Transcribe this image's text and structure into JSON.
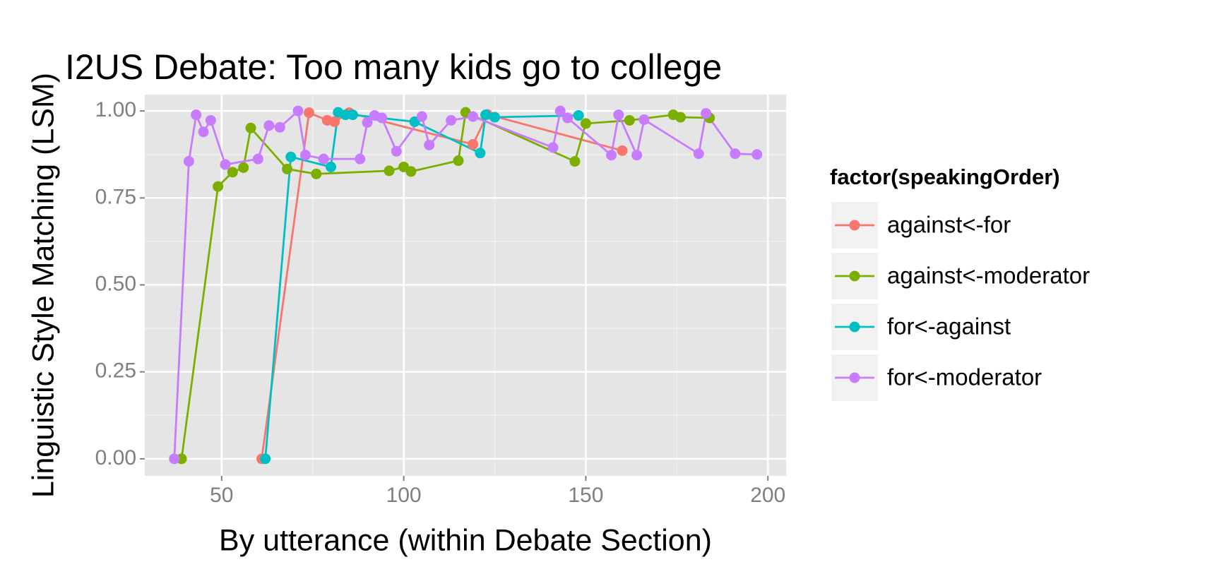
{
  "chart_data": {
    "type": "line",
    "title": "I2US Debate: Too many kids go to college",
    "x_label": "By utterance (within Debate Section)",
    "y_label": "Linguistic Style Matching (LSM)",
    "legend_title": "factor(speakingOrder)",
    "legend_position": "right",
    "grid": true,
    "xlim": [
      28.9,
      205
    ],
    "xticks": [
      50,
      100,
      150,
      200
    ],
    "ylim": [
      -0.049,
      1.047
    ],
    "yticks": [
      {
        "value": 0,
        "label": "0.00"
      },
      {
        "value": 0.25,
        "label": "0.25"
      },
      {
        "value": 0.5,
        "label": "0.50"
      },
      {
        "value": 0.75,
        "label": "0.75"
      },
      {
        "value": 1,
        "label": "1.00"
      }
    ],
    "series": [
      {
        "name": "against<-for",
        "color": "#F8766D",
        "x": [
          61,
          74,
          79,
          81,
          85,
          119,
          123,
          160
        ],
        "values": [
          0,
          0.995,
          0.973,
          0.969,
          0.995,
          0.904,
          0.99,
          0.886
        ]
      },
      {
        "name": "against<-moderator",
        "color": "#7CAE00",
        "x": [
          39,
          49,
          53,
          56,
          58,
          68,
          76,
          96,
          100,
          102,
          115,
          117,
          147,
          150,
          162,
          174,
          176,
          184
        ],
        "values": [
          0,
          0.783,
          0.824,
          0.837,
          0.951,
          0.833,
          0.819,
          0.828,
          0.839,
          0.826,
          0.857,
          0.996,
          0.855,
          0.964,
          0.973,
          0.989,
          0.982,
          0.98
        ]
      },
      {
        "name": "for<-against",
        "color": "#00BFC4",
        "x": [
          62,
          69,
          80,
          82,
          84,
          86,
          103,
          121,
          122.5,
          125,
          148
        ],
        "values": [
          0,
          0.868,
          0.839,
          0.996,
          0.989,
          0.989,
          0.969,
          0.879,
          0.989,
          0.982,
          0.987
        ]
      },
      {
        "name": "for<-moderator",
        "color": "#C77CFF",
        "x": [
          37,
          41,
          43,
          45,
          47,
          51,
          60,
          63,
          66,
          71,
          73,
          78,
          88,
          90,
          92,
          94,
          98,
          105,
          107,
          113,
          119,
          141,
          143,
          145,
          157,
          159,
          164,
          166,
          181,
          183,
          191,
          197
        ],
        "values": [
          0,
          0.855,
          0.989,
          0.94,
          0.973,
          0.846,
          0.862,
          0.958,
          0.953,
          1.0,
          0.873,
          0.862,
          0.862,
          0.967,
          0.987,
          0.98,
          0.884,
          0.984,
          0.902,
          0.973,
          0.984,
          0.895,
          1.0,
          0.98,
          0.873,
          0.989,
          0.873,
          0.975,
          0.877,
          0.993,
          0.877,
          0.875
        ]
      }
    ]
  }
}
